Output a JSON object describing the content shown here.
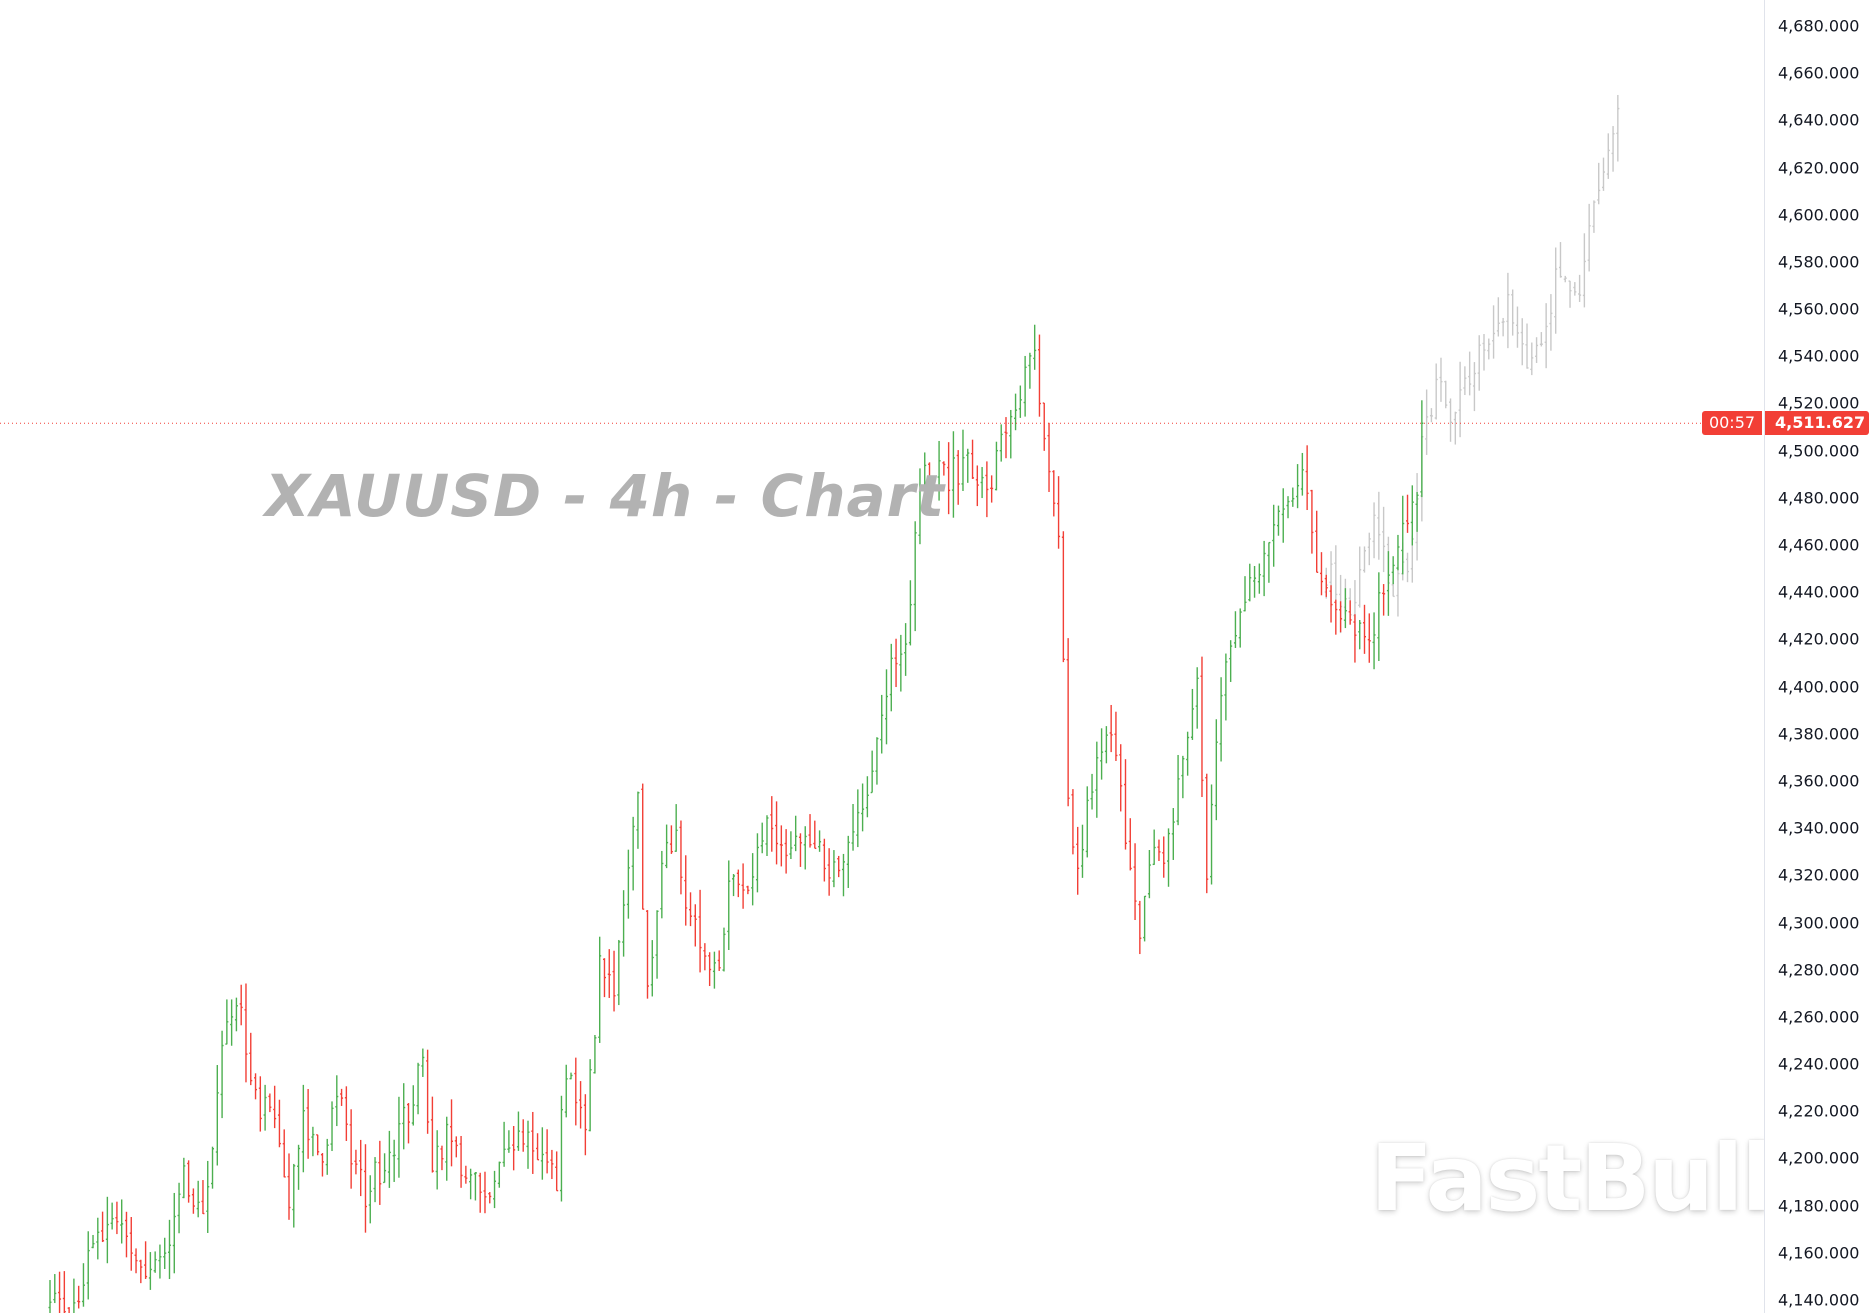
{
  "chart_data": {
    "type": "ohlc-bar",
    "title": "XAUUSD - 4h - Chart",
    "symbol": "XAUUSD",
    "interval": "4h",
    "ylim": [
      4130,
      4690
    ],
    "y_ticks": [
      4140,
      4160,
      4180,
      4200,
      4220,
      4240,
      4260,
      4280,
      4300,
      4320,
      4340,
      4360,
      4380,
      4400,
      4420,
      4440,
      4460,
      4480,
      4500,
      4520,
      4540,
      4560,
      4580,
      4600,
      4620,
      4640,
      4660,
      4680
    ],
    "y_tick_labels": [
      "4,140.000",
      "4,160.000",
      "4,180.000",
      "4,200.000",
      "4,220.000",
      "4,240.000",
      "4,260.000",
      "4,280.000",
      "4,300.000",
      "4,320.000",
      "4,340.000",
      "4,360.000",
      "4,380.000",
      "4,400.000",
      "4,420.000",
      "4,440.000",
      "4,460.000",
      "4,480.000",
      "4,500.000",
      "4,520.000",
      "4,540.000",
      "4,560.000",
      "4,580.000",
      "4,600.000",
      "4,620.000",
      "4,640.000",
      "4,660.000",
      "4,680.000"
    ],
    "last_price": 4511.627,
    "last_price_label": "4,511.627",
    "countdown": "00:57",
    "grid": false,
    "colors": {
      "up": "#4caf50",
      "down": "#f23f36",
      "projection": "#c8c8c8",
      "last_price": "#f23f36"
    },
    "series": [
      {
        "role": "price",
        "approx_close_path": [
          [
            0,
            4145
          ],
          [
            5,
            4140
          ],
          [
            10,
            4165
          ],
          [
            15,
            4170
          ],
          [
            20,
            4150
          ],
          [
            25,
            4160
          ],
          [
            28,
            4190
          ],
          [
            32,
            4170
          ],
          [
            35,
            4230
          ],
          [
            37,
            4255
          ],
          [
            40,
            4260
          ],
          [
            43,
            4225
          ],
          [
            47,
            4215
          ],
          [
            50,
            4180
          ],
          [
            53,
            4215
          ],
          [
            57,
            4200
          ],
          [
            60,
            4230
          ],
          [
            63,
            4200
          ],
          [
            66,
            4185
          ],
          [
            70,
            4200
          ],
          [
            75,
            4220
          ],
          [
            78,
            4240
          ],
          [
            80,
            4200
          ],
          [
            83,
            4210
          ],
          [
            88,
            4190
          ],
          [
            92,
            4180
          ],
          [
            96,
            4210
          ],
          [
            100,
            4210
          ],
          [
            103,
            4200
          ],
          [
            106,
            4190
          ],
          [
            108,
            4240
          ],
          [
            112,
            4210
          ],
          [
            115,
            4280
          ],
          [
            118,
            4270
          ],
          [
            121,
            4320
          ],
          [
            123,
            4350
          ],
          [
            125,
            4270
          ],
          [
            127,
            4310
          ],
          [
            131,
            4345
          ],
          [
            133,
            4300
          ],
          [
            137,
            4290
          ],
          [
            140,
            4280
          ],
          [
            142,
            4320
          ],
          [
            146,
            4320
          ],
          [
            150,
            4340
          ],
          [
            153,
            4330
          ],
          [
            157,
            4330
          ],
          [
            161,
            4330
          ],
          [
            165,
            4320
          ],
          [
            168,
            4340
          ],
          [
            171,
            4360
          ],
          [
            173,
            4380
          ],
          [
            176,
            4410
          ],
          [
            180,
            4430
          ],
          [
            182,
            4490
          ],
          [
            187,
            4490
          ],
          [
            190,
            4490
          ],
          [
            192,
            4500
          ],
          [
            196,
            4480
          ],
          [
            200,
            4510
          ],
          [
            203,
            4525
          ],
          [
            206,
            4540
          ],
          [
            208,
            4500
          ],
          [
            211,
            4460
          ],
          [
            213,
            4350
          ],
          [
            215,
            4320
          ],
          [
            218,
            4360
          ],
          [
            222,
            4380
          ],
          [
            225,
            4340
          ],
          [
            228,
            4300
          ],
          [
            231,
            4330
          ],
          [
            233,
            4320
          ],
          [
            236,
            4360
          ],
          [
            240,
            4400
          ],
          [
            242,
            4320
          ],
          [
            244,
            4380
          ],
          [
            247,
            4420
          ],
          [
            251,
            4440
          ],
          [
            255,
            4460
          ],
          [
            258,
            4480
          ],
          [
            262,
            4490
          ],
          [
            265,
            4450
          ],
          [
            268,
            4440
          ],
          [
            272,
            4430
          ],
          [
            276,
            4420
          ],
          [
            280,
            4450
          ],
          [
            283,
            4470
          ],
          [
            286,
            4480
          ],
          [
            287,
            4511.627
          ]
        ]
      },
      {
        "role": "projection",
        "approx_close_path": [
          [
            267,
            4450
          ],
          [
            272,
            4430
          ],
          [
            277,
            4470
          ],
          [
            281,
            4440
          ],
          [
            285,
            4460
          ],
          [
            287,
            4500
          ],
          [
            290,
            4530
          ],
          [
            293,
            4510
          ],
          [
            297,
            4530
          ],
          [
            301,
            4550
          ],
          [
            305,
            4560
          ],
          [
            308,
            4540
          ],
          [
            312,
            4545
          ],
          [
            316,
            4580
          ],
          [
            320,
            4560
          ],
          [
            322,
            4600
          ],
          [
            325,
            4620
          ],
          [
            328,
            4645
          ]
        ]
      }
    ]
  },
  "watermark": {
    "logo_text": "FastBull"
  }
}
